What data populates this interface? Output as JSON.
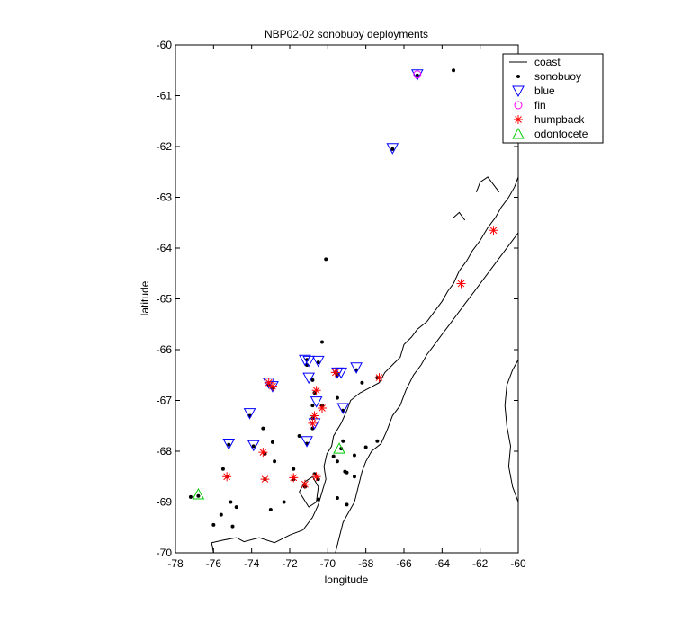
{
  "chart_data": {
    "type": "scatter",
    "title": "NBP02-02 sonobuoy deployments",
    "xlabel": "longitude",
    "ylabel": "latitude",
    "xlim": [
      -78,
      -60
    ],
    "ylim": [
      -70,
      -60
    ],
    "x_ticks": [
      -78,
      -76,
      -74,
      -72,
      -70,
      -68,
      -66,
      -64,
      -62,
      -60
    ],
    "y_ticks": [
      -70,
      -69,
      -68,
      -67,
      -66,
      -65,
      -64,
      -63,
      -62,
      -61,
      -60
    ],
    "x_tick_labels": [
      "-78",
      "-76",
      "-74",
      "-72",
      "-70",
      "-68",
      "-66",
      "-64",
      "-62",
      "-60"
    ],
    "y_tick_labels": [
      "-70",
      "-69",
      "-68",
      "-67",
      "-66",
      "-65",
      "-64",
      "-63",
      "-62",
      "-61",
      "-60"
    ],
    "grid": false,
    "legend_position": "top-right",
    "legend": [
      {
        "label": "coast",
        "marker": "line",
        "color": "#000000"
      },
      {
        "label": "sonobuoy",
        "marker": "dot",
        "color": "#000000"
      },
      {
        "label": "blue",
        "marker": "triangle-down",
        "color": "#0000ff"
      },
      {
        "label": "fin",
        "marker": "circle",
        "color": "#ff00ff"
      },
      {
        "label": "humpback",
        "marker": "asterisk",
        "color": "#ff0000"
      },
      {
        "label": "odontocete",
        "marker": "triangle-up",
        "color": "#00cc00"
      }
    ],
    "series": [
      {
        "name": "sonobuoy",
        "points": [
          [
            -65.3,
            -60.6
          ],
          [
            -63.4,
            -60.5
          ],
          [
            -66.6,
            -62.05
          ],
          [
            -70.1,
            -64.22
          ],
          [
            -70.3,
            -65.85
          ],
          [
            -71.1,
            -66.2
          ],
          [
            -70.5,
            -66.25
          ],
          [
            -69.5,
            -66.5
          ],
          [
            -69.6,
            -66.45
          ],
          [
            -68.5,
            -66.4
          ],
          [
            -71.1,
            -66.3
          ],
          [
            -70.8,
            -66.6
          ],
          [
            -73.1,
            -66.7
          ],
          [
            -72.9,
            -66.75
          ],
          [
            -70.7,
            -66.85
          ],
          [
            -70.3,
            -67.1
          ],
          [
            -69.2,
            -67.2
          ],
          [
            -69.5,
            -66.95
          ],
          [
            -68.2,
            -66.65
          ],
          [
            -67.4,
            -66.55
          ],
          [
            -74.1,
            -67.3
          ],
          [
            -73.4,
            -67.55
          ],
          [
            -70.8,
            -67.1
          ],
          [
            -70.8,
            -67.35
          ],
          [
            -70.8,
            -67.55
          ],
          [
            -71.5,
            -67.7
          ],
          [
            -71.1,
            -67.85
          ],
          [
            -73.9,
            -67.9
          ],
          [
            -72.9,
            -67.82
          ],
          [
            -73.3,
            -68.05
          ],
          [
            -75.2,
            -67.87
          ],
          [
            -69.7,
            -68.1
          ],
          [
            -69.3,
            -67.95
          ],
          [
            -69.2,
            -67.8
          ],
          [
            -68.0,
            -67.92
          ],
          [
            -68.6,
            -68.08
          ],
          [
            -67.4,
            -67.8
          ],
          [
            -75.5,
            -68.35
          ],
          [
            -75.3,
            -68.5
          ],
          [
            -73.3,
            -68.55
          ],
          [
            -72.8,
            -68.2
          ],
          [
            -71.8,
            -68.35
          ],
          [
            -71.8,
            -68.55
          ],
          [
            -71.2,
            -68.7
          ],
          [
            -70.7,
            -68.45
          ],
          [
            -70.5,
            -68.55
          ],
          [
            -69.5,
            -68.2
          ],
          [
            -69.1,
            -68.4
          ],
          [
            -69.0,
            -68.42
          ],
          [
            -68.6,
            -68.5
          ],
          [
            -69.5,
            -68.92
          ],
          [
            -76.8,
            -68.88
          ],
          [
            -77.2,
            -68.9
          ],
          [
            -75.1,
            -69.0
          ],
          [
            -74.8,
            -69.1
          ],
          [
            -75.6,
            -69.25
          ],
          [
            -73.0,
            -69.15
          ],
          [
            -72.3,
            -69.0
          ],
          [
            -70.5,
            -68.95
          ],
          [
            -76.0,
            -69.45
          ],
          [
            -75.0,
            -69.48
          ],
          [
            -69.0,
            -69.05
          ]
        ]
      },
      {
        "name": "blue",
        "points": [
          [
            -65.3,
            -60.58
          ],
          [
            -66.6,
            -62.03
          ],
          [
            -71.2,
            -66.2
          ],
          [
            -71.0,
            -66.22
          ],
          [
            -70.5,
            -66.22
          ],
          [
            -69.5,
            -66.45
          ],
          [
            -69.3,
            -66.45
          ],
          [
            -68.5,
            -66.35
          ],
          [
            -71.0,
            -66.55
          ],
          [
            -73.1,
            -66.65
          ],
          [
            -72.9,
            -66.72
          ],
          [
            -70.6,
            -67.02
          ],
          [
            -69.2,
            -67.15
          ],
          [
            -74.1,
            -67.25
          ],
          [
            -73.9,
            -67.88
          ],
          [
            -75.2,
            -67.85
          ],
          [
            -71.1,
            -67.8
          ],
          [
            -70.7,
            -67.45
          ]
        ]
      },
      {
        "name": "fin",
        "points": [
          [
            -65.3,
            -60.58
          ]
        ]
      },
      {
        "name": "humpback",
        "points": [
          [
            -61.3,
            -63.65
          ],
          [
            -63.0,
            -64.7
          ],
          [
            -67.3,
            -66.55
          ],
          [
            -69.6,
            -66.45
          ],
          [
            -73.1,
            -66.65
          ],
          [
            -72.9,
            -66.72
          ],
          [
            -70.6,
            -66.8
          ],
          [
            -70.3,
            -67.15
          ],
          [
            -70.7,
            -67.3
          ],
          [
            -70.8,
            -67.45
          ],
          [
            -73.4,
            -68.02
          ],
          [
            -75.3,
            -68.5
          ],
          [
            -73.3,
            -68.55
          ],
          [
            -71.8,
            -68.52
          ],
          [
            -71.2,
            -68.65
          ],
          [
            -70.6,
            -68.5
          ]
        ]
      },
      {
        "name": "odontocete",
        "points": [
          [
            -76.8,
            -68.85
          ],
          [
            -69.4,
            -67.95
          ]
        ]
      }
    ],
    "coast": [
      [
        [
          -76.0,
          -70.0
        ],
        [
          -76.1,
          -69.8
        ],
        [
          -75.5,
          -69.75
        ],
        [
          -74.8,
          -69.7
        ],
        [
          -74.4,
          -69.78
        ],
        [
          -73.6,
          -69.7
        ],
        [
          -72.8,
          -69.8
        ],
        [
          -72.0,
          -69.65
        ],
        [
          -71.3,
          -69.55
        ],
        [
          -70.8,
          -69.3
        ],
        [
          -70.5,
          -69.05
        ],
        [
          -70.3,
          -68.8
        ],
        [
          -70.1,
          -68.55
        ],
        [
          -70.2,
          -68.3
        ],
        [
          -70.05,
          -68.05
        ],
        [
          -69.8,
          -67.9
        ],
        [
          -69.7,
          -67.7
        ],
        [
          -69.3,
          -67.45
        ],
        [
          -69.0,
          -67.2
        ],
        [
          -68.8,
          -67.0
        ],
        [
          -68.3,
          -66.85
        ],
        [
          -67.8,
          -66.75
        ],
        [
          -67.3,
          -66.65
        ],
        [
          -67.0,
          -66.45
        ],
        [
          -66.6,
          -66.3
        ],
        [
          -66.2,
          -66.15
        ],
        [
          -66.0,
          -65.9
        ],
        [
          -65.6,
          -65.75
        ],
        [
          -65.3,
          -65.6
        ],
        [
          -64.8,
          -65.45
        ],
        [
          -64.4,
          -65.25
        ],
        [
          -64.0,
          -65.05
        ],
        [
          -63.7,
          -64.85
        ],
        [
          -63.4,
          -64.7
        ],
        [
          -63.1,
          -64.45
        ],
        [
          -62.7,
          -64.25
        ],
        [
          -62.4,
          -64.05
        ],
        [
          -62.0,
          -63.85
        ],
        [
          -61.6,
          -63.6
        ],
        [
          -61.2,
          -63.4
        ],
        [
          -60.9,
          -63.2
        ],
        [
          -60.5,
          -63.0
        ],
        [
          -60.2,
          -62.8
        ],
        [
          -60.0,
          -62.6
        ]
      ],
      [
        [
          -69.6,
          -70.0
        ],
        [
          -69.4,
          -69.7
        ],
        [
          -69.2,
          -69.4
        ],
        [
          -68.9,
          -69.2
        ],
        [
          -68.6,
          -69.0
        ],
        [
          -68.4,
          -68.7
        ],
        [
          -68.2,
          -68.4
        ],
        [
          -68.0,
          -68.2
        ],
        [
          -67.7,
          -68.0
        ],
        [
          -67.2,
          -67.85
        ],
        [
          -66.9,
          -67.6
        ],
        [
          -66.6,
          -67.3
        ],
        [
          -66.2,
          -67.1
        ],
        [
          -65.9,
          -66.8
        ],
        [
          -65.5,
          -66.5
        ],
        [
          -65.1,
          -66.3
        ],
        [
          -64.8,
          -66.1
        ],
        [
          -64.4,
          -65.9
        ],
        [
          -64.0,
          -65.7
        ],
        [
          -63.6,
          -65.5
        ],
        [
          -63.2,
          -65.3
        ],
        [
          -62.8,
          -65.1
        ],
        [
          -62.4,
          -64.9
        ],
        [
          -62.0,
          -64.7
        ],
        [
          -61.6,
          -64.5
        ],
        [
          -61.2,
          -64.3
        ],
        [
          -60.8,
          -64.1
        ],
        [
          -60.4,
          -63.9
        ],
        [
          -60.0,
          -63.7
        ]
      ],
      [
        [
          -60.0,
          -69.0
        ],
        [
          -60.3,
          -68.7
        ],
        [
          -60.5,
          -68.3
        ],
        [
          -60.4,
          -67.9
        ],
        [
          -60.6,
          -67.5
        ],
        [
          -60.7,
          -67.1
        ],
        [
          -60.6,
          -66.7
        ],
        [
          -60.3,
          -66.4
        ],
        [
          -60.0,
          -66.2
        ]
      ],
      [
        [
          -71.5,
          -68.8
        ],
        [
          -71.2,
          -68.6
        ],
        [
          -70.8,
          -68.5
        ],
        [
          -70.5,
          -68.7
        ],
        [
          -70.6,
          -69.0
        ],
        [
          -71.0,
          -69.1
        ],
        [
          -71.5,
          -68.8
        ]
      ],
      [
        [
          -62.2,
          -62.9
        ],
        [
          -62.0,
          -62.7
        ],
        [
          -61.6,
          -62.6
        ],
        [
          -61.3,
          -62.75
        ],
        [
          -61.0,
          -62.9
        ]
      ],
      [
        [
          -63.4,
          -63.4
        ],
        [
          -63.1,
          -63.3
        ],
        [
          -62.8,
          -63.45
        ]
      ]
    ]
  }
}
